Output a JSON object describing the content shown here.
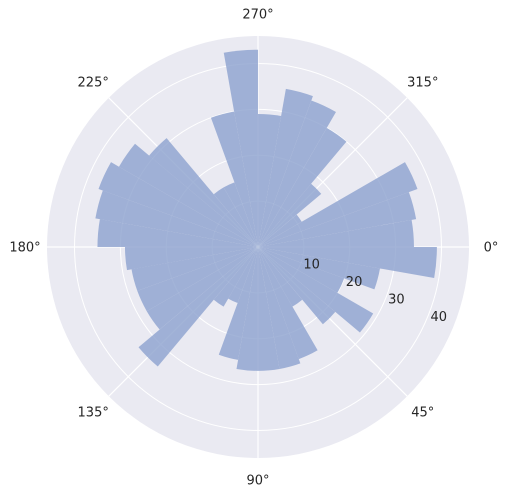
{
  "chart_data": {
    "type": "polar-bar",
    "angle_direction": "clockwise",
    "zero_location": "east",
    "angle_tick_labels": [
      "0°",
      "45°",
      "90°",
      "135°",
      "180°",
      "225°",
      "270°",
      "315°"
    ],
    "angle_tick_values_deg": [
      0,
      45,
      90,
      135,
      180,
      225,
      270,
      315
    ],
    "radial_tick_labels": [
      "10",
      "20",
      "30",
      "40"
    ],
    "radial_tick_values": [
      10,
      20,
      30,
      40
    ],
    "rlim": [
      0,
      46
    ],
    "grid": true,
    "bar_color": "#8fa3cf",
    "bar_alpha": 0.82,
    "background_color": "#eaeaf2",
    "grid_color": "#ffffff",
    "n_bins": 36,
    "bin_width_deg": 10,
    "bin_start_deg": [
      0,
      10,
      20,
      30,
      40,
      50,
      60,
      70,
      80,
      90,
      100,
      110,
      120,
      130,
      140,
      150,
      160,
      170,
      180,
      190,
      200,
      210,
      220,
      230,
      240,
      250,
      260,
      270,
      280,
      290,
      300,
      310,
      320,
      330,
      340,
      350
    ],
    "values": [
      39,
      27,
      20,
      29,
      22,
      15,
      26,
      27,
      27,
      27,
      25,
      13,
      15,
      34,
      28,
      28,
      28,
      29,
      35,
      36,
      37,
      35,
      31,
      15,
      15,
      30,
      43,
      29,
      35,
      34,
      30,
      18,
      11,
      37,
      35,
      34
    ]
  }
}
